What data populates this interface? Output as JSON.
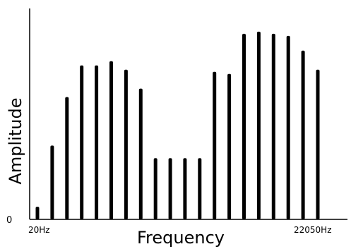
{
  "chart_data": {
    "type": "bar",
    "title": "",
    "xlabel": "Frequency",
    "ylabel": "Amplitude",
    "x_tick_labels": [
      "20Hz",
      "22050Hz"
    ],
    "y_tick_labels": [
      "0"
    ],
    "ylim": [
      0,
      100
    ],
    "grid": false,
    "bar_color": "#000000",
    "values": [
      6,
      35,
      58,
      73,
      73,
      75,
      71,
      62,
      29,
      29,
      29,
      29,
      70,
      69,
      88,
      89,
      88,
      87,
      80,
      71
    ]
  }
}
